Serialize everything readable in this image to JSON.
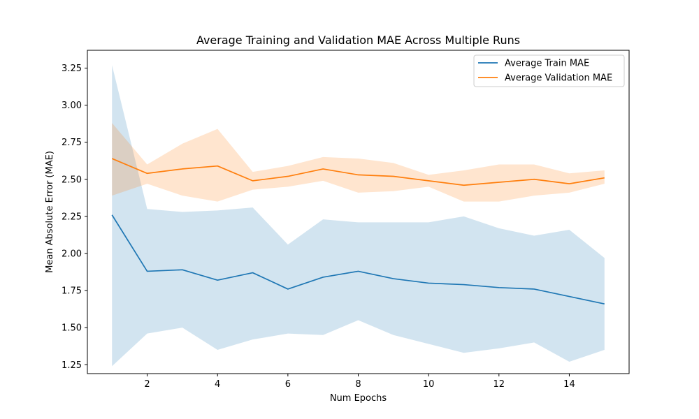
{
  "chart_data": {
    "type": "line",
    "title": "Average Training and Validation MAE Across Multiple Runs",
    "xlabel": "Num Epochs",
    "ylabel": "Mean Absolute Error (MAE)",
    "xlim": [
      0.3,
      15.7
    ],
    "ylim": [
      1.19,
      3.37
    ],
    "xticks": [
      2,
      4,
      6,
      8,
      10,
      12,
      14
    ],
    "yticks": [
      1.25,
      1.5,
      1.75,
      2.0,
      2.25,
      2.5,
      2.75,
      3.0,
      3.25
    ],
    "ytick_labels": [
      "1.25",
      "1.50",
      "1.75",
      "2.00",
      "2.25",
      "2.50",
      "2.75",
      "3.00",
      "3.25"
    ],
    "grid": false,
    "legend_position": "top-right",
    "x": [
      1,
      2,
      3,
      4,
      5,
      6,
      7,
      8,
      9,
      10,
      11,
      12,
      13,
      14,
      15
    ],
    "series": [
      {
        "name": "Average Train MAE",
        "color": "#1f77b4",
        "band_color": "#1f77b4",
        "values": [
          2.26,
          1.88,
          1.89,
          1.82,
          1.87,
          1.76,
          1.84,
          1.88,
          1.83,
          1.8,
          1.79,
          1.77,
          1.76,
          1.71,
          1.66
        ],
        "upper": [
          3.27,
          2.3,
          2.28,
          2.29,
          2.31,
          2.06,
          2.23,
          2.21,
          2.21,
          2.21,
          2.25,
          2.17,
          2.12,
          2.16,
          1.97
        ],
        "lower": [
          1.24,
          1.46,
          1.5,
          1.35,
          1.42,
          1.46,
          1.45,
          1.55,
          1.45,
          1.39,
          1.33,
          1.36,
          1.4,
          1.27,
          1.35
        ]
      },
      {
        "name": "Average Validation MAE",
        "color": "#ff7f0e",
        "band_color": "#ff7f0e",
        "values": [
          2.64,
          2.54,
          2.57,
          2.59,
          2.49,
          2.52,
          2.57,
          2.53,
          2.52,
          2.49,
          2.46,
          2.48,
          2.5,
          2.47,
          2.51
        ],
        "upper": [
          2.88,
          2.6,
          2.74,
          2.84,
          2.55,
          2.59,
          2.65,
          2.64,
          2.61,
          2.53,
          2.56,
          2.6,
          2.6,
          2.54,
          2.56
        ],
        "lower": [
          2.39,
          2.47,
          2.39,
          2.35,
          2.43,
          2.45,
          2.49,
          2.41,
          2.42,
          2.45,
          2.35,
          2.35,
          2.39,
          2.41,
          2.47
        ]
      }
    ]
  }
}
